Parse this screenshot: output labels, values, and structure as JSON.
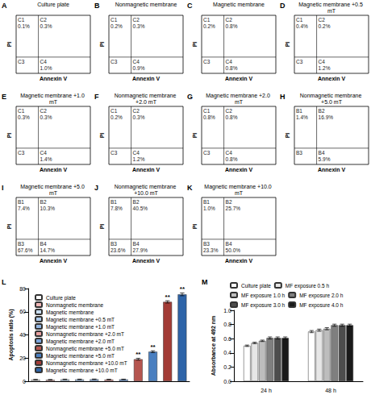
{
  "chart_data": [
    {
      "type": "flow_cytometry",
      "panel": "A",
      "title": "Culture plate",
      "x_label": "Annexin V",
      "y_label": "PI",
      "quadrants": [
        "C1",
        "C2",
        "C3",
        "C4"
      ],
      "values": [
        0.1,
        0.3,
        null,
        1.0
      ],
      "value_labels": [
        "0.1%",
        "0.3%",
        null,
        "1.0%"
      ]
    },
    {
      "type": "flow_cytometry",
      "panel": "B",
      "title": "Nonmagnetic membrane",
      "x_label": "Annexin V",
      "y_label": "PI",
      "quadrants": [
        "C1",
        "C2",
        "C3",
        "C4"
      ],
      "values": [
        0.2,
        0.3,
        null,
        0.9
      ],
      "value_labels": [
        "0.2%",
        "0.3%",
        null,
        "0.9%"
      ]
    },
    {
      "type": "flow_cytometry",
      "panel": "C",
      "title": "Magnetic membrane",
      "x_label": "Annexin V",
      "y_label": "PI",
      "quadrants": [
        "C1",
        "C2",
        "C3",
        "C4"
      ],
      "values": [
        0.2,
        0.8,
        null,
        0.8
      ],
      "value_labels": [
        "0.2%",
        "0.8%",
        null,
        "0.8%"
      ]
    },
    {
      "type": "flow_cytometry",
      "panel": "D",
      "title": "Magnetic membrane +0.5 mT",
      "x_label": "Annexin V",
      "y_label": "PI",
      "quadrants": [
        "C1",
        "C2",
        "C3",
        "C4"
      ],
      "values": [
        0.4,
        0.2,
        null,
        1.2
      ],
      "value_labels": [
        "0.4%",
        "0.2%",
        null,
        "1.2%"
      ]
    },
    {
      "type": "flow_cytometry",
      "panel": "E",
      "title": "Magnetic membrane +1.0 mT",
      "x_label": "Annexin V",
      "y_label": "PI",
      "quadrants": [
        "C1",
        "C2",
        "C3",
        "C4"
      ],
      "values": [
        0.3,
        0.3,
        null,
        1.4
      ],
      "value_labels": [
        "0.3%",
        "0.3%",
        null,
        "1.4%"
      ]
    },
    {
      "type": "flow_cytometry",
      "panel": "F",
      "title": "Nonmagnetic membrane +2.0 mT",
      "x_label": "Annexin V",
      "y_label": "PI",
      "quadrants": [
        "C1",
        "C2",
        "C3",
        "C4"
      ],
      "values": [
        0.2,
        0.3,
        null,
        1.2
      ],
      "value_labels": [
        "0.2%",
        "0.3%",
        null,
        "1.2%"
      ]
    },
    {
      "type": "flow_cytometry",
      "panel": "G",
      "title": "Magnetic membrane +2.0 mT",
      "x_label": "Annexin V",
      "y_label": "PI",
      "quadrants": [
        "C1",
        "C2",
        "C3",
        "C4"
      ],
      "values": [
        0.8,
        0.8,
        null,
        0.8
      ],
      "value_labels": [
        "0.8%",
        "0.8%",
        null,
        "0.8%"
      ]
    },
    {
      "type": "flow_cytometry",
      "panel": "H",
      "title": "Nonmagnetic membrane +5.0 mT",
      "x_label": "Annexin V",
      "y_label": "PI",
      "quadrants": [
        "B1",
        "B2",
        "B3",
        "B4"
      ],
      "values": [
        1.4,
        16.9,
        null,
        5.9
      ],
      "value_labels": [
        "1.4%",
        "16.9%",
        null,
        "5.9%"
      ]
    },
    {
      "type": "flow_cytometry",
      "panel": "I",
      "title": "Magnetic membrane +5.0 mT",
      "x_label": "Annexin V",
      "y_label": "PI",
      "quadrants": [
        "B1",
        "B2",
        "B3",
        "B4"
      ],
      "values": [
        7.4,
        10.3,
        67.6,
        14.7
      ],
      "value_labels": [
        "7.4%",
        "10.3%",
        "67.6%",
        "14.7%"
      ]
    },
    {
      "type": "flow_cytometry",
      "panel": "J",
      "title": "Nonmagnetic membrane +10.0 mT",
      "x_label": "Annexin V",
      "y_label": "PI",
      "quadrants": [
        "B1",
        "B2",
        "B3",
        "B4"
      ],
      "values": [
        7.8,
        40.5,
        23.6,
        27.9
      ],
      "value_labels": [
        "7.8%",
        "40.5%",
        "23.6%",
        "27.9%"
      ]
    },
    {
      "type": "flow_cytometry",
      "panel": "K",
      "title": "Magnetic membrane +10.0 mT",
      "x_label": "Annexin V",
      "y_label": "PI",
      "quadrants": [
        "B1",
        "B2",
        "B3",
        "B4"
      ],
      "values": [
        1.0,
        25.7,
        23.3,
        50.0
      ],
      "value_labels": [
        "1.0%",
        "25.7%",
        "23.3%",
        "50.0%"
      ]
    },
    {
      "type": "bar",
      "panel": "L",
      "y_label": "Apoptosis ratio (%)",
      "categories": [
        "Culture plate",
        "Nonmagnetic membrane",
        "Magnetic membrane",
        "Magnetic membrane +0.5 mT",
        "Magnetic membrane +1.0 mT",
        "Nonmagnetic membrane +2.0 mT",
        "Magnetic membrane +2.0 mT",
        "Nonmagnetic membrane +5.0 mT",
        "Magnetic membrane +5.0 mT",
        "Nonmagnetic membrane +10.0 mT",
        "Magnetic membrane +10.0 mT"
      ],
      "values": [
        1.4,
        1.3,
        1.6,
        1.6,
        1.7,
        1.5,
        1.6,
        19.0,
        25.5,
        68.5,
        75.0
      ],
      "errors": [
        0.2,
        0.2,
        0.2,
        0.2,
        0.2,
        0.2,
        0.2,
        0.8,
        0.8,
        1.0,
        1.2
      ],
      "significance": [
        null,
        null,
        null,
        null,
        null,
        null,
        null,
        "**",
        "**",
        "**",
        "**"
      ],
      "colors": [
        "#ffffff",
        "#f2b8b8",
        "#c9def2",
        "#aecbed",
        "#93b6e3",
        "#e8a0a0",
        "#7aa4dc",
        "#b5554f",
        "#4a7fc0",
        "#a33c36",
        "#2e64a8"
      ],
      "ylim": [
        0,
        80
      ],
      "yticks": [
        0,
        20,
        40,
        60,
        80
      ],
      "tick_labels": "y",
      "legend": "upper left"
    },
    {
      "type": "bar",
      "panel": "M",
      "y_label": "Absorbance at 492 nm",
      "categories": [
        "24 h",
        "48 h"
      ],
      "series": [
        {
          "name": "Culture plate",
          "color": "#ffffff",
          "values": [
            0.5,
            0.7
          ],
          "errors": [
            0.01,
            0.015
          ]
        },
        {
          "name": "MF exposure 0.5 h",
          "color": "#e6e6e6",
          "values": [
            0.54,
            0.72
          ],
          "errors": [
            0.01,
            0.015
          ]
        },
        {
          "name": "MF exposure 1.0 h",
          "color": "#bdbdbd",
          "values": [
            0.57,
            0.74
          ],
          "errors": [
            0.01,
            0.015
          ]
        },
        {
          "name": "MF exposure 2.0 h",
          "color": "#7f7f7f",
          "values": [
            0.61,
            0.79
          ],
          "errors": [
            0.015,
            0.015
          ]
        },
        {
          "name": "MF exposure 3.0 h",
          "color": "#4d4d4d",
          "values": [
            0.61,
            0.79
          ],
          "errors": [
            0.015,
            0.015
          ]
        },
        {
          "name": "MF exposure 4.0 h",
          "color": "#1a1a1a",
          "values": [
            0.61,
            0.79
          ],
          "errors": [
            0.015,
            0.015
          ]
        }
      ],
      "ylim": [
        0,
        1.0
      ],
      "yticks": [
        {
          "value": 0,
          "label": "0.0"
        },
        0.2,
        0.4,
        0.6,
        0.8,
        {
          "value": 1.0,
          "label": "1.0"
        }
      ],
      "legend": "top"
    }
  ]
}
